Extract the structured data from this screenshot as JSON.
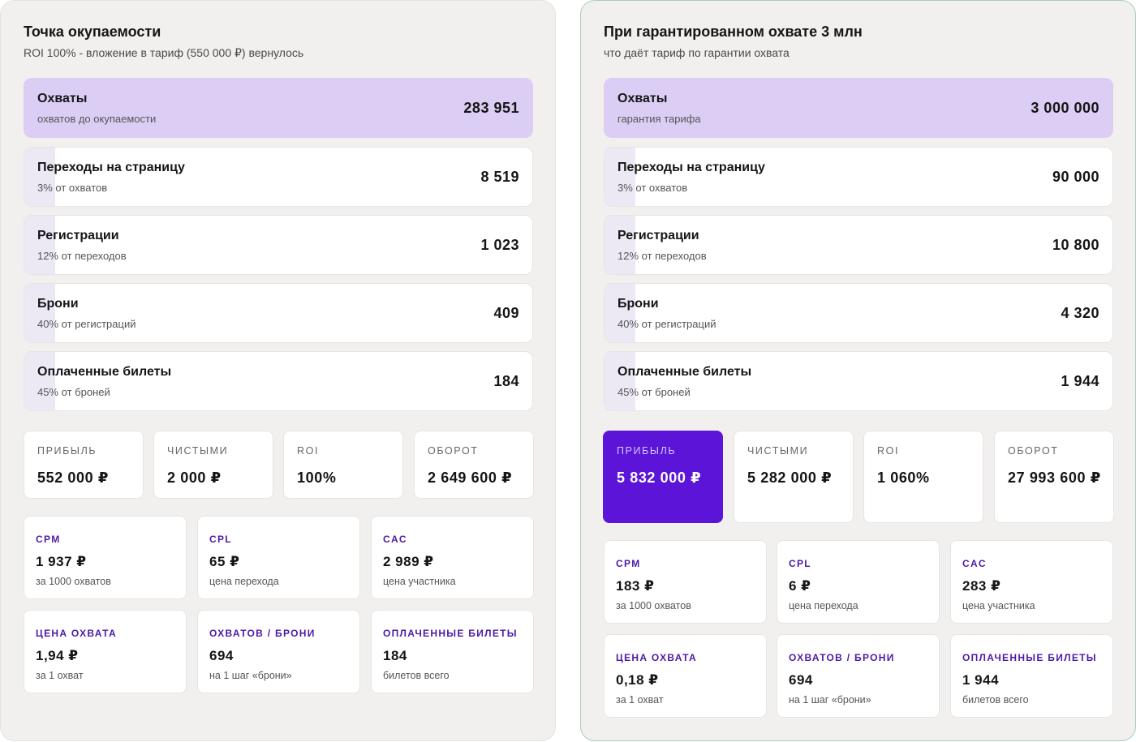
{
  "left": {
    "title": "Точка окупаемости",
    "subtitle": "ROI 100% - вложение в тариф (550 000 ₽) вернулось",
    "funnel": [
      {
        "label": "Охваты",
        "sub": "охватов до окупаемости",
        "value": "283 951"
      },
      {
        "label": "Переходы на страницу",
        "sub": "3% от охватов",
        "value": "8 519"
      },
      {
        "label": "Регистрации",
        "sub": "12% от переходов",
        "value": "1 023"
      },
      {
        "label": "Брони",
        "sub": "40% от регистраций",
        "value": "409"
      },
      {
        "label": "Оплаченные билеты",
        "sub": "45% от броней",
        "value": "184"
      }
    ],
    "kpis": [
      {
        "label": "ПРИБЫЛЬ",
        "value": "552 000 ₽"
      },
      {
        "label": "ЧИСТЫМИ",
        "value": "2 000 ₽"
      },
      {
        "label": "ROI",
        "value": "100%"
      },
      {
        "label": "ОБОРОТ",
        "value": "2 649 600 ₽"
      }
    ],
    "metrics": [
      {
        "label": "CPM",
        "value": "1 937 ₽",
        "sub": "за 1000 охватов"
      },
      {
        "label": "CPL",
        "value": "65 ₽",
        "sub": "цена перехода"
      },
      {
        "label": "CAC",
        "value": "2 989 ₽",
        "sub": "цена участника"
      },
      {
        "label": "ЦЕНА ОХВАТА",
        "value": "1,94 ₽",
        "sub": "за 1 охват"
      },
      {
        "label": "ОХВАТОВ / БРОНИ",
        "value": "694",
        "sub": "на 1 шаг «брони»"
      },
      {
        "label": "ОПЛАЧЕННЫЕ БИЛЕТЫ",
        "value": "184",
        "sub": "билетов всего"
      }
    ]
  },
  "right": {
    "title": "При гарантированном охвате 3 млн",
    "subtitle": "что даёт тариф по гарантии охвата",
    "funnel": [
      {
        "label": "Охваты",
        "sub": "гарантия тарифа",
        "value": "3 000 000"
      },
      {
        "label": "Переходы на страницу",
        "sub": "3% от охватов",
        "value": "90 000"
      },
      {
        "label": "Регистрации",
        "sub": "12% от переходов",
        "value": "10 800"
      },
      {
        "label": "Брони",
        "sub": "40% от регистраций",
        "value": "4 320"
      },
      {
        "label": "Оплаченные билеты",
        "sub": "45% от броней",
        "value": "1 944"
      }
    ],
    "kpis": [
      {
        "label": "ПРИБЫЛЬ",
        "value": "5 832 000 ₽"
      },
      {
        "label": "ЧИСТЫМИ",
        "value": "5 282 000 ₽"
      },
      {
        "label": "ROI",
        "value": "1 060%"
      },
      {
        "label": "ОБОРОТ",
        "value": "27 993 600 ₽"
      }
    ],
    "metrics": [
      {
        "label": "CPM",
        "value": "183 ₽",
        "sub": "за 1000 охватов"
      },
      {
        "label": "CPL",
        "value": "6 ₽",
        "sub": "цена перехода"
      },
      {
        "label": "CAC",
        "value": "283 ₽",
        "sub": "цена участника"
      },
      {
        "label": "ЦЕНА ОХВАТА",
        "value": "0,18 ₽",
        "sub": "за 1 охват"
      },
      {
        "label": "ОХВАТОВ / БРОНИ",
        "value": "694",
        "sub": "на 1 шаг «брони»"
      },
      {
        "label": "ОПЛАЧЕННЫЕ БИЛЕТЫ",
        "value": "1 944",
        "sub": "билетов всего"
      }
    ]
  },
  "colors": {
    "panel_bg": "#f1f0ee",
    "highlight_row": "#dccdf5",
    "accent": "#5b14d8",
    "metric_label": "#4c1aa6"
  }
}
